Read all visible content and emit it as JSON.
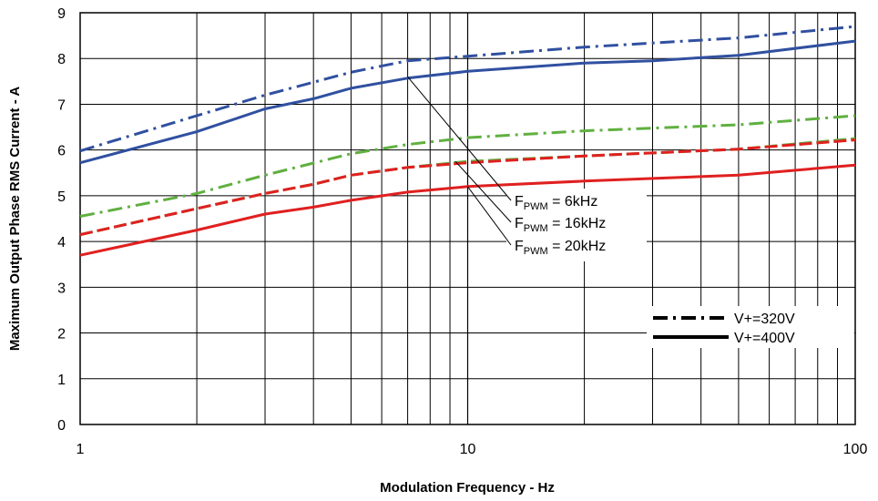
{
  "chart_data": {
    "type": "line",
    "xscale": "log",
    "xlim": [
      1,
      100
    ],
    "ylim": [
      0,
      9
    ],
    "xlabel": "Modulation Frequency - Hz",
    "ylabel": "Maximum Output Phase RMS Current - A",
    "x_ticks": [
      "1",
      "10",
      "100"
    ],
    "y_ticks": [
      "0",
      "1",
      "2",
      "3",
      "4",
      "5",
      "6",
      "7",
      "8",
      "9"
    ],
    "grid": true,
    "series": [
      {
        "name": "FPWM = 6kHz, V+=320V",
        "color": "#3050a0",
        "style": "dashdot",
        "x": [
          1,
          2,
          3,
          5,
          7,
          10,
          20,
          50,
          100
        ],
        "y": [
          5.98,
          6.75,
          7.2,
          7.7,
          7.95,
          8.05,
          8.25,
          8.45,
          8.7
        ]
      },
      {
        "name": "FPWM = 6kHz, V+=400V",
        "color": "#3050a0",
        "style": "solid",
        "x": [
          1,
          2,
          3,
          4,
          5,
          7,
          10,
          20,
          30,
          50,
          100
        ],
        "y": [
          5.72,
          6.4,
          6.9,
          7.12,
          7.35,
          7.57,
          7.72,
          7.9,
          7.95,
          8.07,
          8.38
        ]
      },
      {
        "name": "FPWM = 16kHz, V+=320V",
        "color": "#60b040",
        "style": "dashdot",
        "x": [
          1,
          2,
          3,
          5,
          7,
          10,
          20,
          50,
          100
        ],
        "y": [
          4.55,
          5.05,
          5.45,
          5.92,
          6.12,
          6.27,
          6.42,
          6.55,
          6.75
        ]
      },
      {
        "name": "FPWM = 16kHz, V+=400V",
        "color": "#60b040",
        "style": "dashed",
        "x": [
          1,
          2,
          3,
          4,
          5,
          7,
          10,
          20,
          50,
          100
        ],
        "y": [
          4.15,
          4.72,
          5.05,
          5.25,
          5.45,
          5.62,
          5.75,
          5.87,
          6.02,
          6.25
        ]
      },
      {
        "name": "FPWM = 20kHz, V+=320V",
        "color": "#e02020",
        "style": "dashed",
        "x": [
          1,
          2,
          3,
          4,
          5,
          7,
          10,
          20,
          50,
          100
        ],
        "y": [
          4.15,
          4.72,
          5.05,
          5.25,
          5.45,
          5.62,
          5.72,
          5.87,
          6.02,
          6.22
        ]
      },
      {
        "name": "FPWM = 20kHz, V+=400V",
        "color": "#e02020",
        "style": "solid",
        "x": [
          1,
          2,
          3,
          4,
          5,
          7,
          10,
          20,
          50,
          100
        ],
        "y": [
          3.7,
          4.25,
          4.6,
          4.75,
          4.9,
          5.08,
          5.2,
          5.32,
          5.45,
          5.67
        ]
      }
    ],
    "annotations": [
      {
        "main": "F",
        "sub": "PWM",
        "rest": " = 6kHz",
        "x": 7,
        "y": 7.6
      },
      {
        "main": "F",
        "sub": "PWM",
        "rest": " = 16kHz",
        "x": 9.3,
        "y": 5.75
      },
      {
        "main": "F",
        "sub": "PWM",
        "rest": " = 20kHz",
        "x": 10,
        "y": 5.2
      }
    ],
    "legend": {
      "placement": "bottom-right",
      "entries": [
        {
          "label": "V+=320V",
          "style": "dashdot"
        },
        {
          "label": "V+=400V",
          "style": "solid"
        }
      ]
    }
  }
}
